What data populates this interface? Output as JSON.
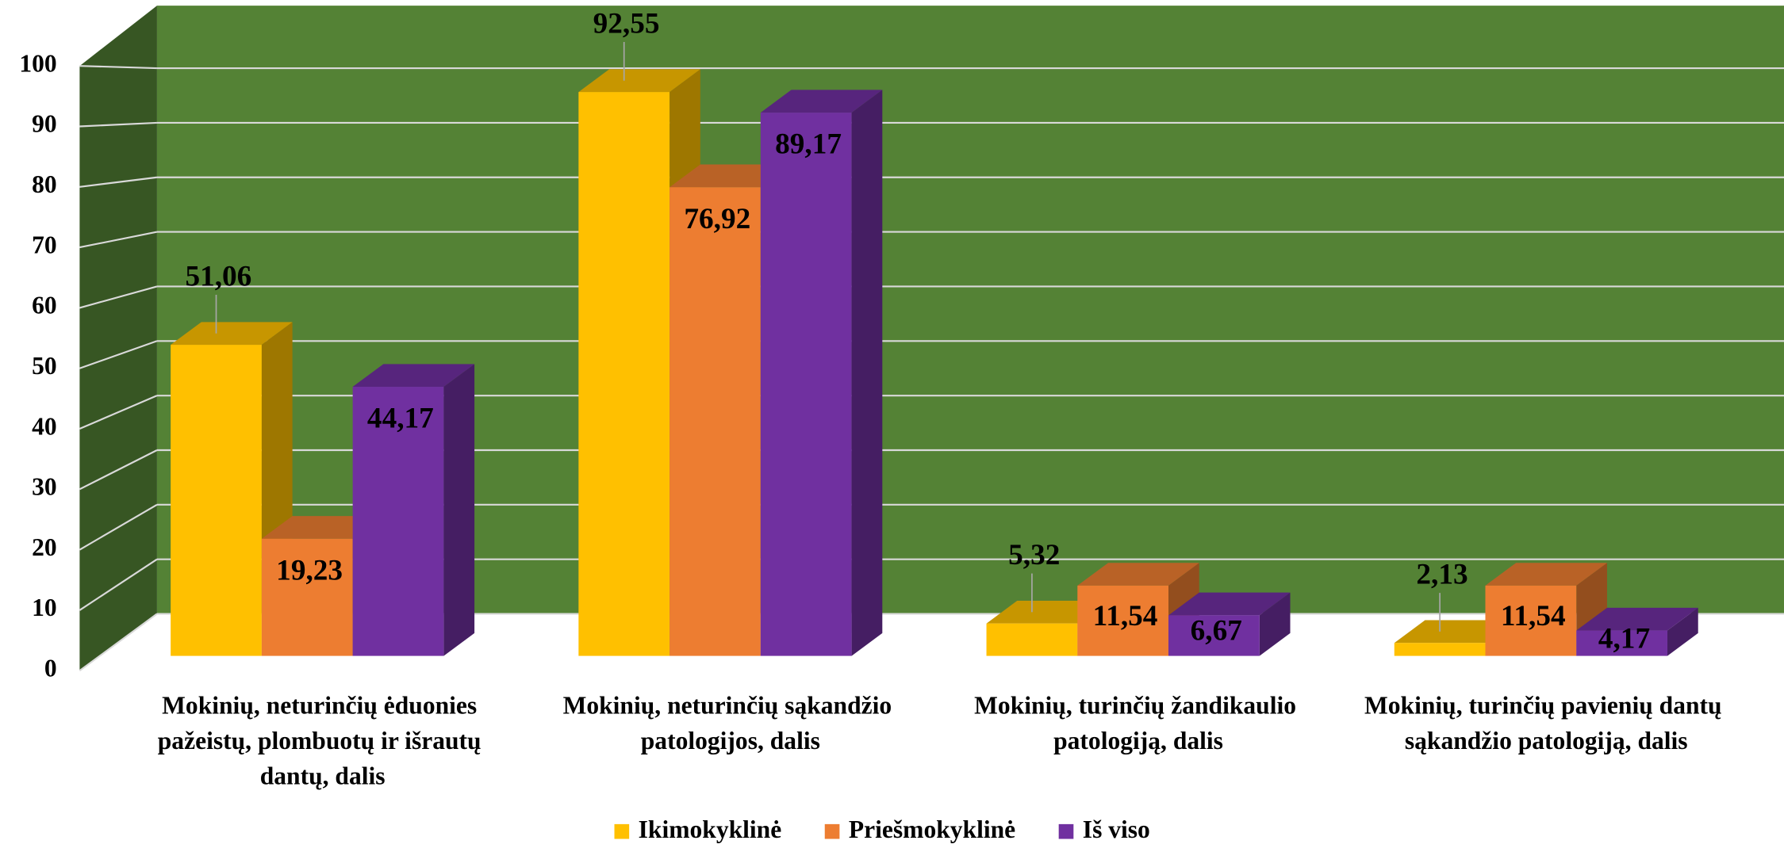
{
  "chart_data": {
    "type": "bar3d",
    "categories": [
      "Mokinių, neturinčių ėduonies pažeistų, plombuotų ir išrautų dantų, dalis",
      "Mokinių, neturinčių sąkandžio patologijos, dalis",
      "Mokinių, turinčių žandikaulio patologiją, dalis",
      "Mokinių, turinčių pavienių dantų sąkandžio patologiją, dalis"
    ],
    "series": [
      {
        "name": "Ikimokyklinė",
        "color": "#FFC000",
        "values": [
          51.06,
          92.55,
          5.32,
          2.13
        ],
        "value_labels": [
          "51,06",
          "92,55",
          "5,32",
          "2,13"
        ]
      },
      {
        "name": "Priešmokyklinė",
        "color": "#ED7D31",
        "values": [
          19.23,
          76.92,
          11.54,
          11.54
        ],
        "value_labels": [
          "19,23",
          "76,92",
          "11,54",
          "11,54"
        ]
      },
      {
        "name": "Iš viso",
        "color": "#7030A0",
        "values": [
          44.17,
          89.17,
          6.67,
          4.17
        ],
        "value_labels": [
          "44,17",
          "89,17",
          "6,67",
          "4,17"
        ]
      }
    ],
    "ylim": [
      0,
      100
    ],
    "yticks": [
      0,
      10,
      20,
      30,
      40,
      50,
      60,
      70,
      80,
      90,
      100
    ],
    "grid": true,
    "legend": "bottom"
  }
}
